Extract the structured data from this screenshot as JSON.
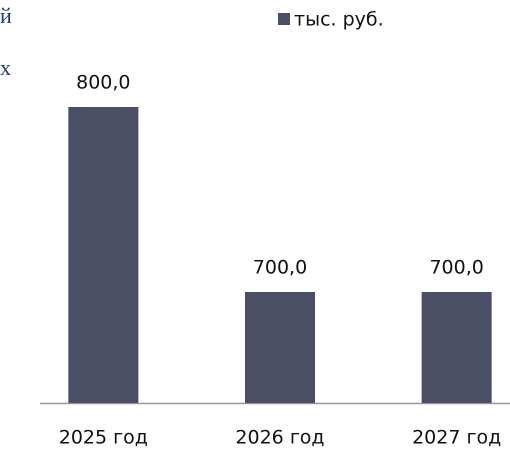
{
  "chart_data": {
    "type": "bar",
    "annotations": [
      "й",
      "х"
    ],
    "categories": [
      "2025 год",
      "2026 год",
      "2027 год"
    ],
    "series": [
      {
        "name": "тыс. руб.",
        "color": "#4b4f66",
        "values": [
          800,
          700,
          700
        ],
        "value_labels": [
          "800,0",
          "700,0",
          "700,0"
        ]
      }
    ],
    "ylim": [
      640,
      860
    ],
    "legend": "top"
  }
}
